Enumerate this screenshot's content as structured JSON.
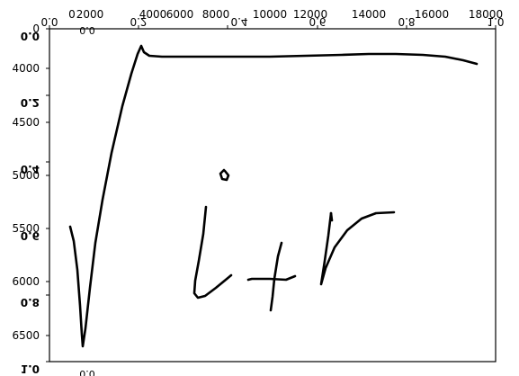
{
  "figure": {
    "top_ticks_mirrored": [
      "0.0",
      "0.2",
      "0.4",
      "0.6",
      "0.8",
      "1.0"
    ],
    "top_ticks_garbled": [
      "0",
      "2000",
      "4000",
      "6000",
      "8000",
      "10000",
      "12000",
      "14000",
      "16000",
      "18000"
    ],
    "left_ticks_mirrored": [
      "0.0",
      "0.2",
      "0.4",
      "0.6",
      "0.8",
      "1.0"
    ],
    "left_ticks_garbled": [
      "0",
      "4000",
      "4500",
      "5000",
      "5500",
      "6000",
      "6500"
    ],
    "sub_label_top": "0.0",
    "sub_label_bottom": "0.0"
  }
}
